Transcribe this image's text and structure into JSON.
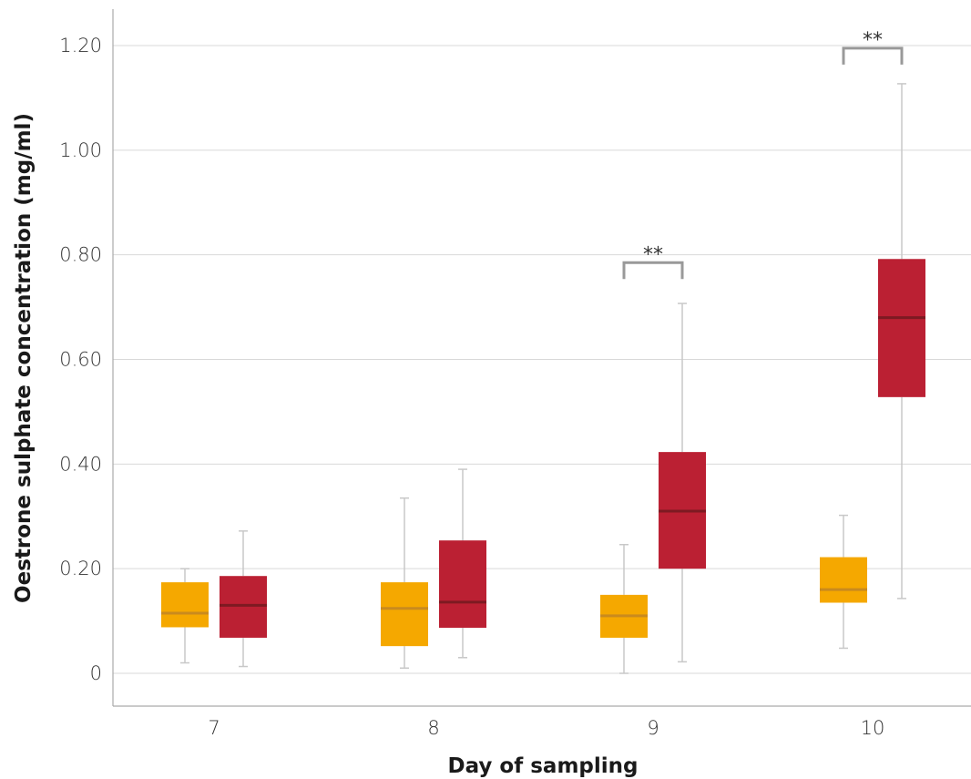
{
  "chart_data": {
    "type": "box",
    "xlabel": "Day of sampling",
    "ylabel": "Oestrone sulphate concentration (mg/ml)",
    "ylim": [
      -0.06,
      1.26
    ],
    "yticks": [
      0,
      0.2,
      0.4,
      0.6,
      0.8,
      1.0,
      1.2
    ],
    "ytick_labels": [
      "0",
      "0.20",
      "0.40",
      "0.60",
      "0.80",
      "1.00",
      "1.20"
    ],
    "grid": true,
    "categories": [
      "7",
      "8",
      "9",
      "10"
    ],
    "series": [
      {
        "color": "#f5a800",
        "median_color": "#c98a1e",
        "boxes": [
          {
            "min": 0.02,
            "q1": 0.088,
            "median": 0.115,
            "q3": 0.174,
            "max": 0.2
          },
          {
            "min": 0.01,
            "q1": 0.052,
            "median": 0.124,
            "q3": 0.174,
            "max": 0.335
          },
          {
            "min": 0.0,
            "q1": 0.068,
            "median": 0.11,
            "q3": 0.15,
            "max": 0.246
          },
          {
            "min": 0.048,
            "q1": 0.135,
            "median": 0.16,
            "q3": 0.222,
            "max": 0.302
          }
        ]
      },
      {
        "color": "#bb2033",
        "median_color": "#7d1a22",
        "boxes": [
          {
            "min": 0.013,
            "q1": 0.068,
            "median": 0.13,
            "q3": 0.186,
            "max": 0.272
          },
          {
            "min": 0.03,
            "q1": 0.087,
            "median": 0.136,
            "q3": 0.254,
            "max": 0.39
          },
          {
            "min": 0.022,
            "q1": 0.2,
            "median": 0.31,
            "q3": 0.423,
            "max": 0.707
          },
          {
            "min": 0.143,
            "q1": 0.528,
            "median": 0.68,
            "q3": 0.792,
            "max": 1.127
          }
        ]
      }
    ],
    "annotations": [
      {
        "category_index": 2,
        "text": "**",
        "y": 0.785
      },
      {
        "category_index": 3,
        "text": "**",
        "y": 1.195
      }
    ]
  }
}
